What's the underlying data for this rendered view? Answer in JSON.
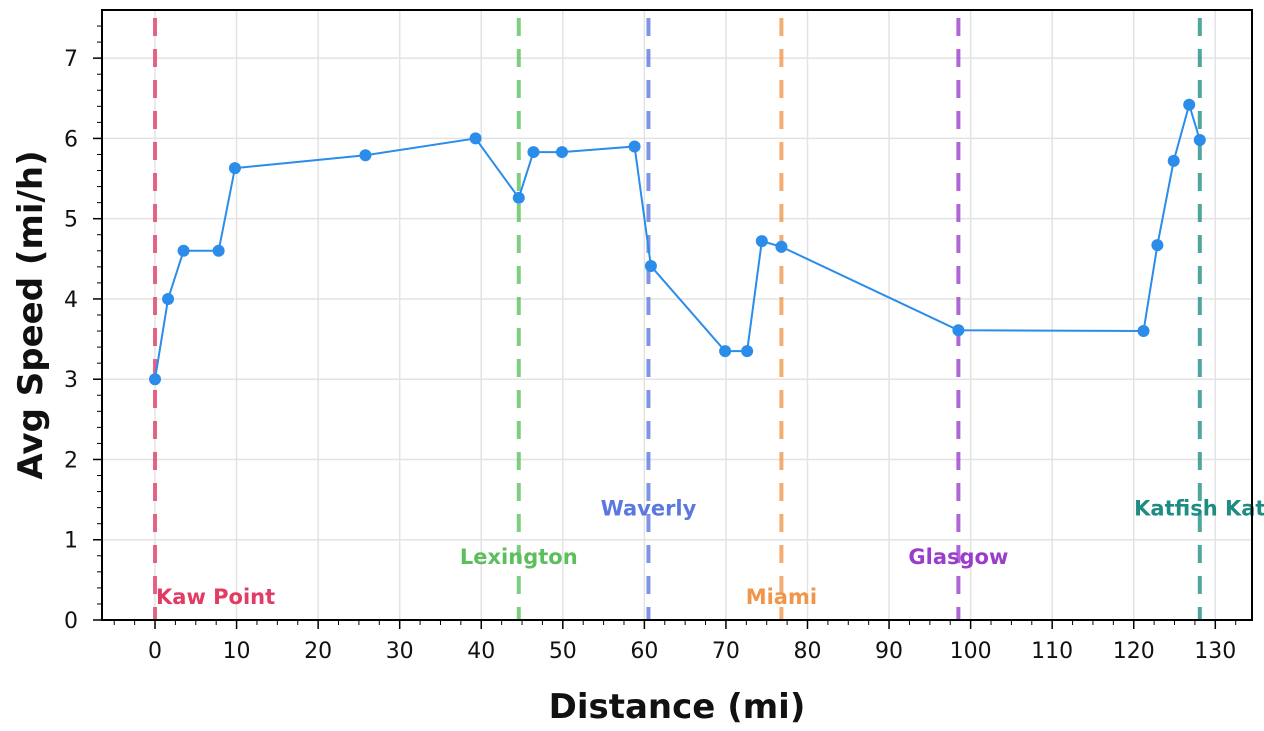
{
  "chart_data": {
    "type": "line",
    "title": "",
    "xlabel": "Distance (mi)",
    "ylabel": "Avg Speed (mi/h)",
    "xlim": [
      -6.5,
      134.5
    ],
    "ylim": [
      0,
      7.6
    ],
    "xticks": [
      0,
      10,
      20,
      30,
      40,
      50,
      60,
      70,
      80,
      90,
      100,
      110,
      120,
      130
    ],
    "yticks": [
      0,
      1,
      2,
      3,
      4,
      5,
      6,
      7
    ],
    "grid": true,
    "series": [
      {
        "color": "#2b8cea",
        "points": [
          {
            "x": 0,
            "y": 3.0
          },
          {
            "x": 1.6,
            "y": 4.0
          },
          {
            "x": 3.5,
            "y": 4.6
          },
          {
            "x": 7.8,
            "y": 4.6
          },
          {
            "x": 9.8,
            "y": 5.63
          },
          {
            "x": 25.8,
            "y": 5.79
          },
          {
            "x": 39.3,
            "y": 6.0
          },
          {
            "x": 44.6,
            "y": 5.26
          },
          {
            "x": 46.4,
            "y": 5.83
          },
          {
            "x": 49.9,
            "y": 5.83
          },
          {
            "x": 58.8,
            "y": 5.9
          },
          {
            "x": 60.8,
            "y": 4.41
          },
          {
            "x": 69.9,
            "y": 3.35
          },
          {
            "x": 72.6,
            "y": 3.35
          },
          {
            "x": 74.4,
            "y": 4.72
          },
          {
            "x": 76.8,
            "y": 4.65
          },
          {
            "x": 98.5,
            "y": 3.61
          },
          {
            "x": 121.2,
            "y": 3.6
          },
          {
            "x": 122.9,
            "y": 4.67
          },
          {
            "x": 124.9,
            "y": 5.72
          },
          {
            "x": 126.8,
            "y": 6.42
          },
          {
            "x": 128.1,
            "y": 5.98
          }
        ]
      }
    ],
    "markers": [
      {
        "label": "Kaw Point",
        "x": 0,
        "color": "#e03c64",
        "label_y": 0.3,
        "align": "start"
      },
      {
        "label": "Lexington",
        "x": 44.6,
        "color": "#5cbf5c",
        "label_y": 0.8,
        "align": "middle"
      },
      {
        "label": "Waverly",
        "x": 60.5,
        "color": "#5b78e0",
        "label_y": 1.4,
        "align": "middle"
      },
      {
        "label": "Miami",
        "x": 76.8,
        "color": "#f0954a",
        "label_y": 0.3,
        "align": "middle"
      },
      {
        "label": "Glasgow",
        "x": 98.5,
        "color": "#9a3ccc",
        "label_y": 0.8,
        "align": "middle"
      },
      {
        "label": "Katfish Kat",
        "x": 128.1,
        "color": "#1f8c84",
        "label_y": 1.4,
        "align": "middle"
      }
    ]
  }
}
